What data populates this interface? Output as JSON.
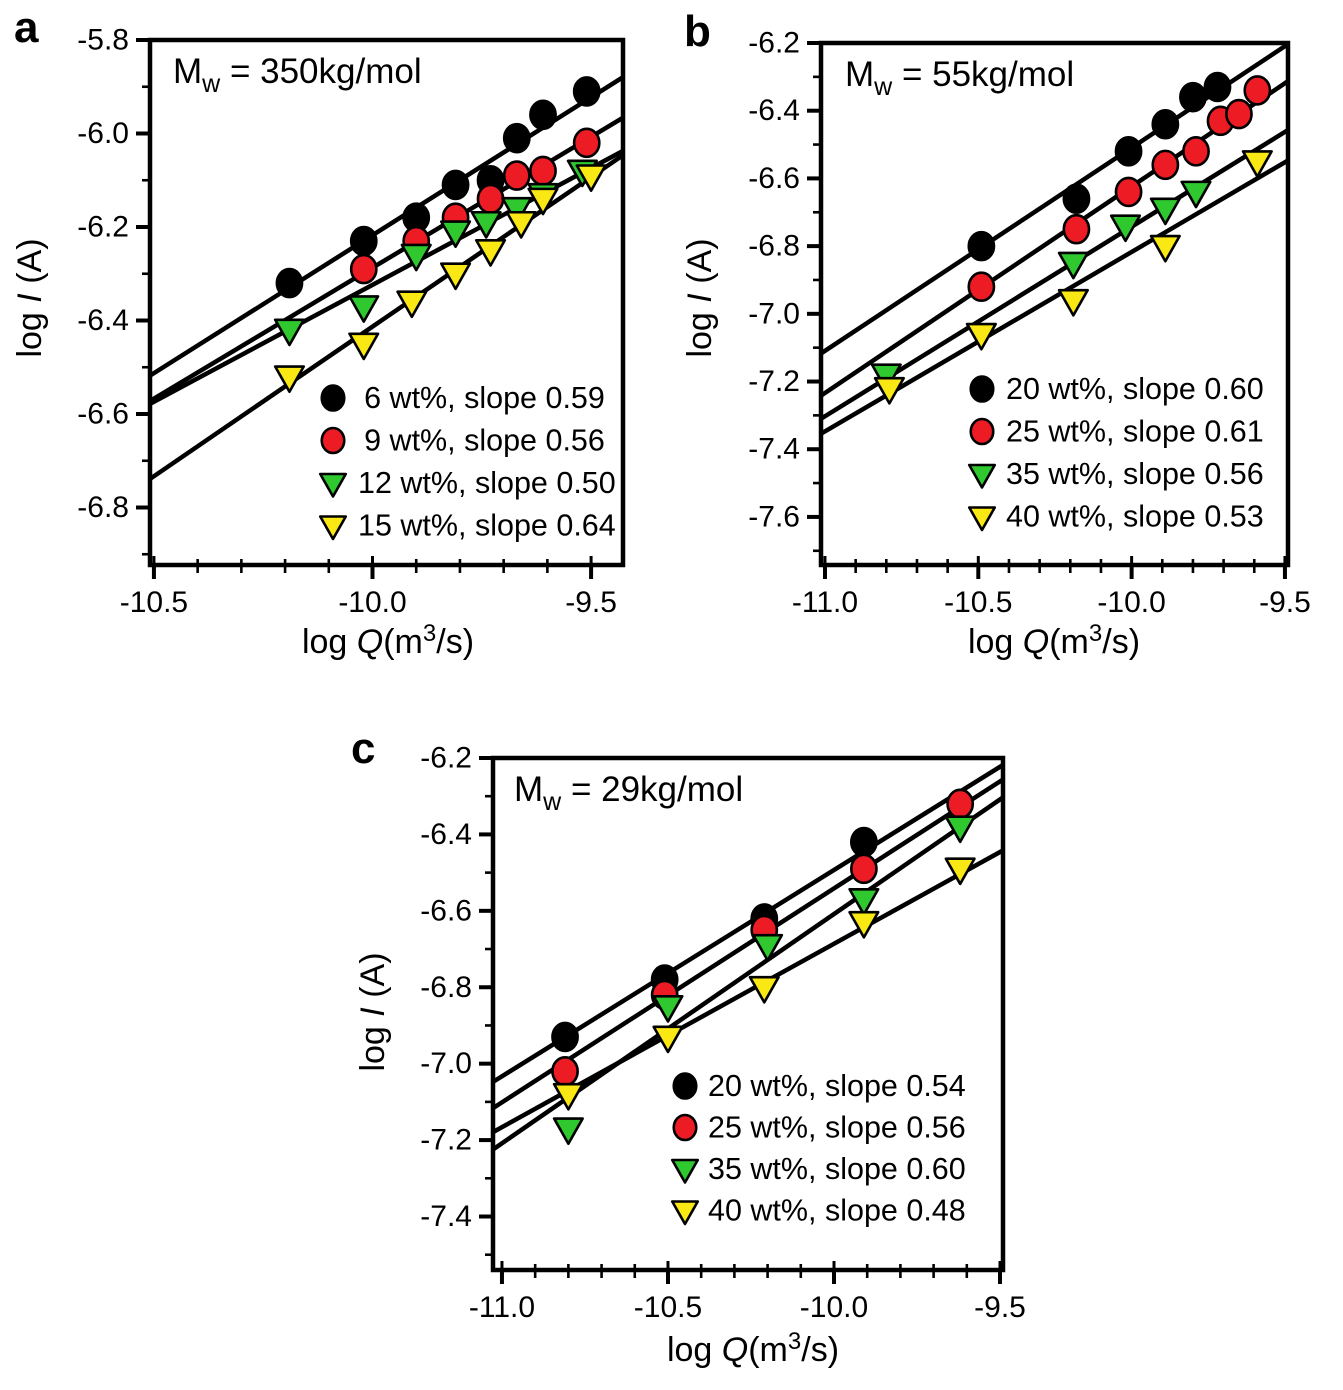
{
  "background": "#ffffff",
  "chart_data": [
    {
      "type": "scatter",
      "panel_letter": "a",
      "title": {
        "base": "M",
        "sub": "w",
        "rest": " = 350kg/mol"
      },
      "xlabel": {
        "pre": "log ",
        "var": "Q",
        "paren": "(m",
        "sup": "3",
        "post": "/s)"
      },
      "ylabel": {
        "pre": "log ",
        "var": "I",
        "post": " (A)"
      },
      "xlim": [
        -10.509,
        -9.427
      ],
      "ylim": [
        -6.923,
        -5.8
      ],
      "xticks": [
        -10.5,
        -10.0,
        -9.5
      ],
      "yticks": [
        -5.8,
        -6.0,
        -6.2,
        -6.4,
        -6.6,
        -6.8
      ],
      "minor_step": 0.1,
      "legend_position": "inside-bottom-right",
      "series": [
        {
          "name": "6 wt%",
          "legend": " 6 wt%, slope 0.59",
          "slope": 0.59,
          "marker": "circle",
          "color": "#000000",
          "points": [
            [
              -10.19,
              -6.32
            ],
            [
              -10.02,
              -6.23
            ],
            [
              -9.9,
              -6.18
            ],
            [
              -9.81,
              -6.11
            ],
            [
              -9.73,
              -6.1
            ],
            [
              -9.67,
              -6.01
            ],
            [
              -9.61,
              -5.96
            ],
            [
              -9.51,
              -5.91
            ]
          ]
        },
        {
          "name": "9 wt%",
          "legend": " 9 wt%, slope 0.56",
          "slope": 0.56,
          "marker": "circle",
          "color": "#ED1C24",
          "points": [
            [
              -10.02,
              -6.29
            ],
            [
              -9.9,
              -6.23
            ],
            [
              -9.81,
              -6.18
            ],
            [
              -9.73,
              -6.14
            ],
            [
              -9.67,
              -6.09
            ],
            [
              -9.61,
              -6.08
            ],
            [
              -9.51,
              -6.02
            ]
          ]
        },
        {
          "name": "12 wt%",
          "legend": "12 wt%, slope 0.50",
          "slope": 0.5,
          "marker": "triangle-down",
          "color": "#2FC82F",
          "points": [
            [
              -10.19,
              -6.42
            ],
            [
              -10.02,
              -6.37
            ],
            [
              -9.9,
              -6.26
            ],
            [
              -9.81,
              -6.21
            ],
            [
              -9.74,
              -6.19
            ],
            [
              -9.67,
              -6.16
            ],
            [
              -9.61,
              -6.13
            ],
            [
              -9.52,
              -6.08
            ]
          ]
        },
        {
          "name": "15 wt%",
          "legend": "15 wt%, slope 0.64",
          "slope": 0.64,
          "marker": "triangle-down",
          "color": "#F9E814",
          "points": [
            [
              -10.19,
              -6.52
            ],
            [
              -10.02,
              -6.45
            ],
            [
              -9.91,
              -6.36
            ],
            [
              -9.81,
              -6.3
            ],
            [
              -9.73,
              -6.25
            ],
            [
              -9.66,
              -6.19
            ],
            [
              -9.61,
              -6.14
            ],
            [
              -9.5,
              -6.09
            ]
          ]
        }
      ]
    },
    {
      "type": "scatter",
      "panel_letter": "b",
      "title": {
        "base": "M",
        "sub": "w",
        "rest": " = 55kg/mol"
      },
      "xlabel": {
        "pre": "log ",
        "var": "Q",
        "paren": "(m",
        "sup": "3",
        "post": "/s)"
      },
      "ylabel": {
        "pre": "log ",
        "var": "I",
        "post": " (A)"
      },
      "xlim": [
        -11.013,
        -9.49
      ],
      "ylim": [
        -7.742,
        -6.2
      ],
      "xticks": [
        -11.0,
        -10.5,
        -10.0,
        -9.5
      ],
      "yticks": [
        -6.2,
        -6.4,
        -6.6,
        -6.8,
        -7.0,
        -7.2,
        -7.4,
        -7.6
      ],
      "minor_step": 0.1,
      "legend_position": "inside-bottom-right",
      "series": [
        {
          "name": "20 wt%",
          "legend": "20 wt%, slope 0.60",
          "slope": 0.6,
          "marker": "circle",
          "color": "#000000",
          "points": [
            [
              -10.49,
              -6.8
            ],
            [
              -10.18,
              -6.66
            ],
            [
              -10.01,
              -6.52
            ],
            [
              -9.89,
              -6.44
            ],
            [
              -9.8,
              -6.36
            ],
            [
              -9.72,
              -6.33
            ]
          ]
        },
        {
          "name": "25 wt%",
          "legend": "25 wt%, slope 0.61",
          "slope": 0.61,
          "marker": "circle",
          "color": "#ED1C24",
          "points": [
            [
              -10.49,
              -6.92
            ],
            [
              -10.18,
              -6.75
            ],
            [
              -10.01,
              -6.64
            ],
            [
              -9.89,
              -6.56
            ],
            [
              -9.79,
              -6.52
            ],
            [
              -9.71,
              -6.43
            ],
            [
              -9.65,
              -6.41
            ],
            [
              -9.59,
              -6.34
            ]
          ]
        },
        {
          "name": "35 wt%",
          "legend": "35 wt%, slope 0.56",
          "slope": 0.56,
          "marker": "triangle-down",
          "color": "#2FC82F",
          "points": [
            [
              -10.8,
              -7.18
            ],
            [
              -10.19,
              -6.85
            ],
            [
              -10.02,
              -6.74
            ],
            [
              -9.89,
              -6.69
            ],
            [
              -9.79,
              -6.64
            ]
          ]
        },
        {
          "name": "40 wt%",
          "legend": "40 wt%, slope 0.53",
          "slope": 0.53,
          "marker": "triangle-down",
          "color": "#F9E814",
          "points": [
            [
              -10.79,
              -7.22
            ],
            [
              -10.49,
              -7.06
            ],
            [
              -10.19,
              -6.96
            ],
            [
              -9.89,
              -6.8
            ],
            [
              -9.59,
              -6.55
            ]
          ]
        }
      ]
    },
    {
      "type": "scatter",
      "panel_letter": "c",
      "title": {
        "base": "M",
        "sub": "w",
        "rest": " = 29kg/mol"
      },
      "xlabel": {
        "pre": "log ",
        "var": "Q",
        "paren": "(m",
        "sup": "3",
        "post": "/s)"
      },
      "ylabel": {
        "pre": "log ",
        "var": "I",
        "post": " (A)"
      },
      "xlim": [
        -11.027,
        -9.491
      ],
      "ylim": [
        -7.54,
        -6.2
      ],
      "xticks": [
        -11.0,
        -10.5,
        -10.0,
        -9.5
      ],
      "yticks": [
        -6.2,
        -6.4,
        -6.6,
        -6.8,
        -7.0,
        -7.2,
        -7.4
      ],
      "minor_step": 0.1,
      "legend_position": "inside-bottom-right",
      "series": [
        {
          "name": "20 wt%",
          "legend": "20 wt%, slope 0.54",
          "slope": 0.54,
          "marker": "circle",
          "color": "#000000",
          "points": [
            [
              -10.81,
              -6.93
            ],
            [
              -10.51,
              -6.78
            ],
            [
              -10.21,
              -6.62
            ],
            [
              -9.91,
              -6.42
            ]
          ]
        },
        {
          "name": "25 wt%",
          "legend": "25 wt%, slope 0.56",
          "slope": 0.56,
          "marker": "circle",
          "color": "#ED1C24",
          "points": [
            [
              -10.81,
              -7.02
            ],
            [
              -10.51,
              -6.82
            ],
            [
              -10.21,
              -6.65
            ],
            [
              -9.91,
              -6.49
            ],
            [
              -9.62,
              -6.32
            ]
          ]
        },
        {
          "name": "35 wt%",
          "legend": "35 wt%, slope 0.60",
          "slope": 0.6,
          "marker": "triangle-down",
          "color": "#2FC82F",
          "points": [
            [
              -10.8,
              -7.17
            ],
            [
              -10.5,
              -6.85
            ],
            [
              -10.2,
              -6.69
            ],
            [
              -9.91,
              -6.57
            ],
            [
              -9.62,
              -6.38
            ]
          ]
        },
        {
          "name": "40 wt%",
          "legend": "40 wt%, slope 0.48",
          "slope": 0.48,
          "marker": "triangle-down",
          "color": "#F9E814",
          "points": [
            [
              -10.8,
              -7.08
            ],
            [
              -10.5,
              -6.93
            ],
            [
              -10.21,
              -6.8
            ],
            [
              -9.91,
              -6.63
            ],
            [
              -9.62,
              -6.49
            ]
          ]
        }
      ]
    }
  ]
}
